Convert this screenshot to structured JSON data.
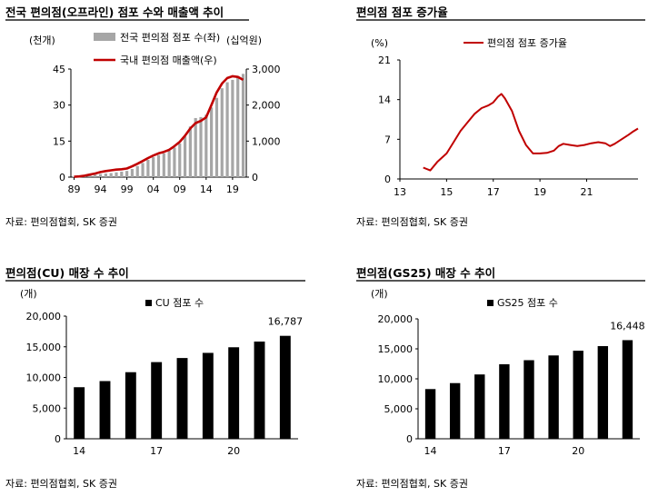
{
  "panels": [
    {
      "title": "전국 편의점(오프라인) 점포 수와 매출액 추이",
      "source": "자료: 편의점협회, SK 증권",
      "chart_data": {
        "type": "bar+line",
        "left_unit": "(천개)",
        "right_unit": "(십억원)",
        "left_ylim": [
          0,
          45
        ],
        "left_yticks": [
          "0",
          "15",
          "30",
          "45"
        ],
        "right_ylim": [
          0,
          3000
        ],
        "right_yticks": [
          "0",
          "1,000",
          "2,000",
          "3,000"
        ],
        "xticks": [
          "89",
          "94",
          "99",
          "04",
          "09",
          "14",
          "19"
        ],
        "series": [
          {
            "name": "전국 편의점 점포 수(좌)",
            "kind": "bar",
            "axis": "left",
            "color": "#a6a6a6",
            "x": [
              1989,
              1990,
              1991,
              1992,
              1993,
              1994,
              1995,
              1996,
              1997,
              1998,
              1999,
              2000,
              2001,
              2002,
              2003,
              2004,
              2005,
              2006,
              2007,
              2008,
              2009,
              2010,
              2011,
              2012,
              2013,
              2014,
              2015,
              2016,
              2017,
              2018,
              2019,
              2020,
              2021
            ],
            "values": [
              0.2,
              0.3,
              0.5,
              0.8,
              1.0,
              1.3,
              1.5,
              1.7,
              2.0,
              2.3,
              2.6,
              3.4,
              4.6,
              5.9,
              7.2,
              8.3,
              9.2,
              9.9,
              11.0,
              12.3,
              14.0,
              16.9,
              21.1,
              24.6,
              25.0,
              26.0,
              29.0,
              33.0,
              37.0,
              39.5,
              40.5,
              42.0,
              43.0
            ]
          },
          {
            "name": "국내 편의점 매출액(우)",
            "kind": "line",
            "axis": "right",
            "color": "#c00000",
            "x": [
              1989,
              1990,
              1991,
              1992,
              1993,
              1994,
              1995,
              1996,
              1997,
              1998,
              1999,
              2000,
              2001,
              2002,
              2003,
              2004,
              2005,
              2006,
              2007,
              2008,
              2009,
              2010,
              2011,
              2012,
              2013,
              2014,
              2015,
              2016,
              2017,
              2018,
              2019,
              2020,
              2021
            ],
            "values": [
              10,
              20,
              40,
              70,
              100,
              140,
              170,
              190,
              210,
              220,
              240,
              300,
              370,
              450,
              530,
              600,
              660,
              700,
              760,
              860,
              980,
              1150,
              1350,
              1500,
              1560,
              1660,
              2000,
              2350,
              2600,
              2750,
              2800,
              2780,
              2700
            ]
          }
        ]
      }
    },
    {
      "title": "편의점 점포 증가율",
      "source": "자료: 편의점협회, SK 증권",
      "chart_data": {
        "type": "line",
        "unit": "(%)",
        "ylim": [
          0,
          21
        ],
        "yticks": [
          "0",
          "7",
          "14",
          "21"
        ],
        "xlim": [
          2013,
          2023.2
        ],
        "xticks": [
          "13",
          "15",
          "17",
          "19",
          "21"
        ],
        "series": [
          {
            "name": "편의점 점포 증가율",
            "color": "#c00000",
            "x": [
              2014.0,
              2014.3,
              2014.6,
              2015.0,
              2015.3,
              2015.6,
              2015.9,
              2016.2,
              2016.5,
              2016.8,
              2017.0,
              2017.2,
              2017.35,
              2017.5,
              2017.8,
              2018.1,
              2018.4,
              2018.7,
              2019.0,
              2019.3,
              2019.6,
              2019.8,
              2020.0,
              2020.3,
              2020.6,
              2020.9,
              2021.2,
              2021.5,
              2021.8,
              2022.0,
              2022.2,
              2022.5,
              2022.8,
              2023.0,
              2023.2
            ],
            "values": [
              2.0,
              1.5,
              3.0,
              4.5,
              6.5,
              8.5,
              10.0,
              11.5,
              12.5,
              13.0,
              13.5,
              14.5,
              15.0,
              14.2,
              12.0,
              8.5,
              6.0,
              4.5,
              4.5,
              4.6,
              5.0,
              5.8,
              6.2,
              6.0,
              5.8,
              6.0,
              6.3,
              6.5,
              6.3,
              5.8,
              6.2,
              7.0,
              7.8,
              8.4,
              8.9
            ]
          }
        ]
      }
    },
    {
      "title": "편의점(CU) 매장 수 추이",
      "source": "자료: 편의점협회, SK 증권",
      "chart_data": {
        "type": "bar",
        "unit": "(개)",
        "ylim": [
          0,
          20000
        ],
        "yticks": [
          "0",
          "5,000",
          "10,000",
          "15,000",
          "20,000"
        ],
        "xticks": [
          "14",
          "17",
          "20"
        ],
        "series": [
          {
            "name": "CU 점포 수",
            "color": "#000000",
            "x": [
              2014,
              2015,
              2016,
              2017,
              2018,
              2019,
              2020,
              2021,
              2022
            ],
            "values": [
              8408,
              9409,
              10857,
              12503,
              13169,
              14008,
              14923,
              15855,
              16787
            ]
          }
        ],
        "annotation": "16,787"
      }
    },
    {
      "title": "편의점(GS25) 매장 수 추이",
      "source": "자료: 편의점협회, SK 증권",
      "chart_data": {
        "type": "bar",
        "unit": "(개)",
        "ylim": [
          0,
          20000
        ],
        "yticks": [
          "0",
          "5,000",
          "10,000",
          "15,000",
          "20,000"
        ],
        "xticks": [
          "14",
          "17",
          "20"
        ],
        "series": [
          {
            "name": "GS25 점포 수",
            "color": "#000000",
            "x": [
              2014,
              2015,
              2016,
              2017,
              2018,
              2019,
              2020,
              2021,
              2022
            ],
            "values": [
              8290,
              9285,
              10728,
              12429,
              13107,
              13899,
              14688,
              15453,
              16448
            ]
          }
        ],
        "annotation": "16,448"
      }
    }
  ]
}
